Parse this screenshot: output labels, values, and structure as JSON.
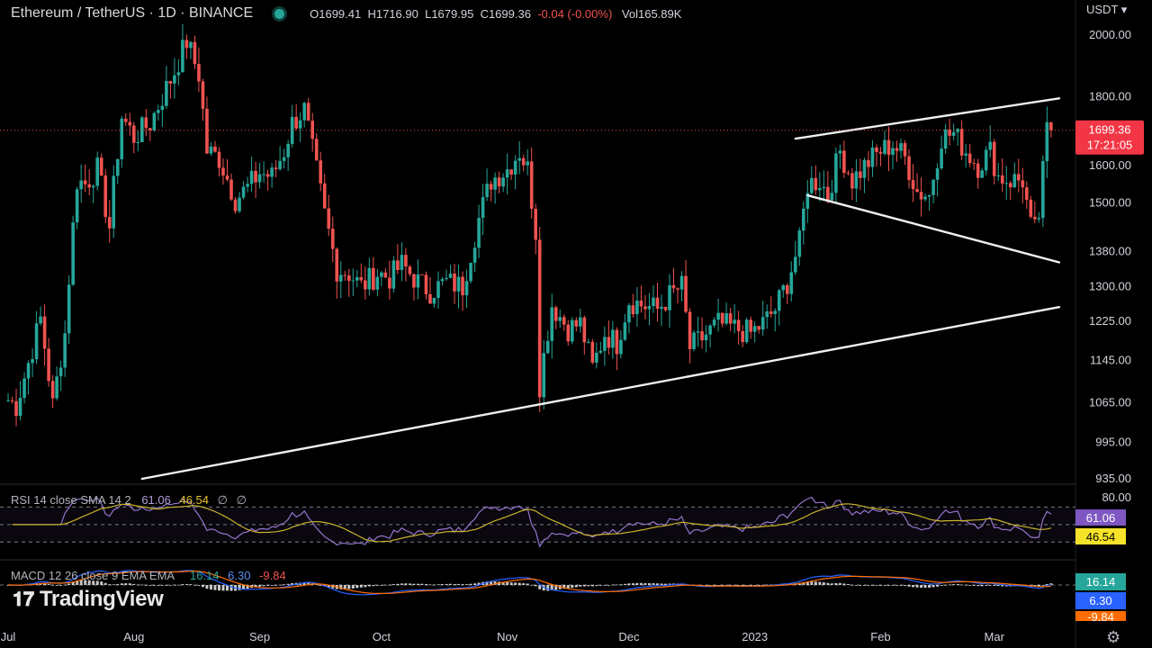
{
  "header": {
    "symbol": "Ethereum / TetherUS · 1D · BINANCE",
    "open": "O1699.41",
    "high": "H1716.90",
    "low": "L1679.95",
    "close": "C1699.36",
    "change": "-0.04 (-0.00%)",
    "volume": "Vol165.89K",
    "currency": "USDT ▾"
  },
  "price_label": {
    "price": "1699.36",
    "countdown": "17:21:05"
  },
  "rsi": {
    "label": "RSI 14 close SMA 14 2",
    "value": "61.06",
    "sma": "46.54",
    "extra1": "∅",
    "extra2": "∅",
    "top_tick": "80.00",
    "badge_rsi": "61.06",
    "badge_sma": "46.54"
  },
  "macd": {
    "label": "MACD 12 26 close 9 EMA EMA",
    "hist": "16.14",
    "macd": "6.30",
    "signal": "-9.84",
    "badge1": "16.14",
    "badge2": "6.30",
    "badge3": "-9.84"
  },
  "branding": {
    "name": "TradingView"
  },
  "colors": {
    "up": "#26a69a",
    "down": "#ef5350",
    "rsi": "#9575cd",
    "sma": "#c9b22a",
    "macd": "#2962ff",
    "signal": "#ff6d00"
  },
  "chart_data": {
    "type": "candlestick",
    "title": "Ethereum / TetherUS · 1D · BINANCE",
    "y_axis": {
      "scale": "log",
      "range": [
        935,
        2060
      ],
      "ticks": [
        "2000.00",
        "1800.00",
        "1600.00",
        "1500.00",
        "1380.00",
        "1300.00",
        "1225.00",
        "1145.00",
        "1065.00",
        "995.00",
        "935.00"
      ]
    },
    "x_axis": {
      "range": [
        "2022-07-01",
        "2023-03-16"
      ],
      "ticks": [
        {
          "date": "2022-07-01",
          "label": "Jul"
        },
        {
          "date": "2022-08-01",
          "label": "Aug"
        },
        {
          "date": "2022-09-01",
          "label": "Sep"
        },
        {
          "date": "2022-10-01",
          "label": "Oct"
        },
        {
          "date": "2022-11-01",
          "label": "Nov"
        },
        {
          "date": "2022-12-01",
          "label": "Dec"
        },
        {
          "date": "2023-01-01",
          "label": "2023"
        },
        {
          "date": "2023-02-01",
          "label": "Feb"
        },
        {
          "date": "2023-03-01",
          "label": "Mar"
        }
      ]
    },
    "last_close": 1699.36,
    "price_path": [
      [
        "2022-07-01",
        1070
      ],
      [
        "2022-07-03",
        1060
      ],
      [
        "2022-07-06",
        1140
      ],
      [
        "2022-07-09",
        1230
      ],
      [
        "2022-07-12",
        1060
      ],
      [
        "2022-07-15",
        1200
      ],
      [
        "2022-07-18",
        1560
      ],
      [
        "2022-07-20",
        1550
      ],
      [
        "2022-07-23",
        1590
      ],
      [
        "2022-07-26",
        1440
      ],
      [
        "2022-07-29",
        1740
      ],
      [
        "2022-08-01",
        1680
      ],
      [
        "2022-08-05",
        1720
      ],
      [
        "2022-08-08",
        1800
      ],
      [
        "2022-08-11",
        1880
      ],
      [
        "2022-08-14",
        1980
      ],
      [
        "2022-08-17",
        1870
      ],
      [
        "2022-08-19",
        1640
      ],
      [
        "2022-08-22",
        1620
      ],
      [
        "2022-08-26",
        1510
      ],
      [
        "2022-08-29",
        1540
      ],
      [
        "2022-09-01",
        1580
      ],
      [
        "2022-09-04",
        1570
      ],
      [
        "2022-09-07",
        1640
      ],
      [
        "2022-09-09",
        1720
      ],
      [
        "2022-09-12",
        1760
      ],
      [
        "2022-09-14",
        1640
      ],
      [
        "2022-09-17",
        1470
      ],
      [
        "2022-09-20",
        1340
      ],
      [
        "2022-09-23",
        1330
      ],
      [
        "2022-09-26",
        1300
      ],
      [
        "2022-09-30",
        1330
      ],
      [
        "2022-10-03",
        1320
      ],
      [
        "2022-10-06",
        1350
      ],
      [
        "2022-10-10",
        1310
      ],
      [
        "2022-10-13",
        1290
      ],
      [
        "2022-10-17",
        1310
      ],
      [
        "2022-10-21",
        1300
      ],
      [
        "2022-10-25",
        1460
      ],
      [
        "2022-10-28",
        1560
      ],
      [
        "2022-11-01",
        1590
      ],
      [
        "2022-11-04",
        1640
      ],
      [
        "2022-11-06",
        1590
      ],
      [
        "2022-11-08",
        1430
      ],
      [
        "2022-11-09",
        1100
      ],
      [
        "2022-11-12",
        1260
      ],
      [
        "2022-11-16",
        1210
      ],
      [
        "2022-11-19",
        1220
      ],
      [
        "2022-11-22",
        1130
      ],
      [
        "2022-11-25",
        1200
      ],
      [
        "2022-11-28",
        1180
      ],
      [
        "2022-12-01",
        1270
      ],
      [
        "2022-12-04",
        1260
      ],
      [
        "2022-12-08",
        1250
      ],
      [
        "2022-12-11",
        1280
      ],
      [
        "2022-12-14",
        1300
      ],
      [
        "2022-12-16",
        1170
      ],
      [
        "2022-12-19",
        1190
      ],
      [
        "2022-12-23",
        1220
      ],
      [
        "2022-12-27",
        1210
      ],
      [
        "2022-12-31",
        1200
      ],
      [
        "2023-01-03",
        1220
      ],
      [
        "2023-01-06",
        1250
      ],
      [
        "2023-01-09",
        1310
      ],
      [
        "2023-01-12",
        1400
      ],
      [
        "2023-01-14",
        1550
      ],
      [
        "2023-01-17",
        1560
      ],
      [
        "2023-01-19",
        1520
      ],
      [
        "2023-01-22",
        1640
      ],
      [
        "2023-01-25",
        1560
      ],
      [
        "2023-01-29",
        1610
      ],
      [
        "2023-02-01",
        1640
      ],
      [
        "2023-02-04",
        1660
      ],
      [
        "2023-02-07",
        1620
      ],
      [
        "2023-02-10",
        1530
      ],
      [
        "2023-02-13",
        1520
      ],
      [
        "2023-02-16",
        1680
      ],
      [
        "2023-02-19",
        1690
      ],
      [
        "2023-02-22",
        1640
      ],
      [
        "2023-02-25",
        1600
      ],
      [
        "2023-02-28",
        1640
      ],
      [
        "2023-03-02",
        1570
      ],
      [
        "2023-03-05",
        1560
      ],
      [
        "2023-03-08",
        1560
      ],
      [
        "2023-03-10",
        1440
      ],
      [
        "2023-03-11",
        1430
      ],
      [
        "2023-03-12",
        1470
      ],
      [
        "2023-03-13",
        1580
      ],
      [
        "2023-03-14",
        1700
      ],
      [
        "2023-03-15",
        1700
      ]
    ],
    "trendlines": [
      {
        "from": [
          "2022-08-03",
          935
        ],
        "to": [
          "2023-03-17",
          1255
        ]
      },
      {
        "from": [
          "2023-01-11",
          1675
        ],
        "to": [
          "2023-03-17",
          1795
        ]
      },
      {
        "from": [
          "2023-01-14",
          1520
        ],
        "to": [
          "2023-03-17",
          1355
        ]
      }
    ],
    "rsi_series": {
      "ylim": [
        20,
        90
      ],
      "bands": [
        70,
        50,
        30
      ]
    },
    "macd_series": {
      "zero_line": true
    }
  }
}
